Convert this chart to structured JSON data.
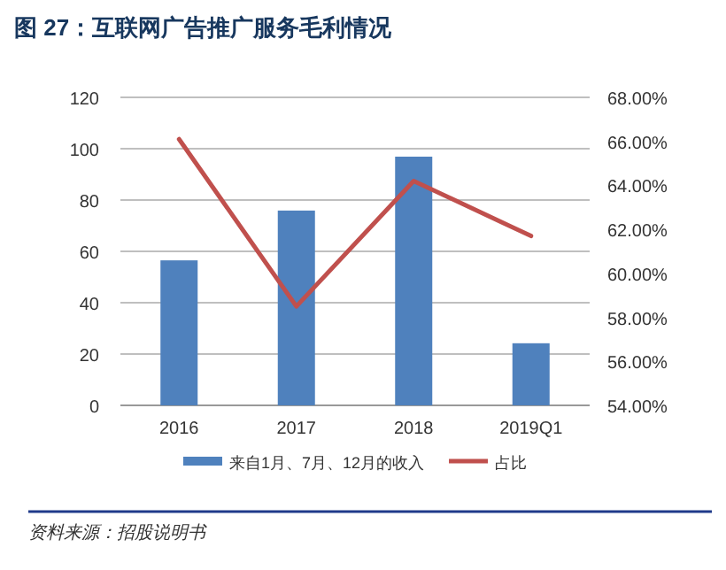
{
  "chart_data": {
    "type": "bar",
    "title": "图 27：互联网广告推广服务毛利情况",
    "categories": [
      "2016",
      "2017",
      "2018",
      "2019Q1"
    ],
    "series": [
      {
        "name": "来自1月、7月、12月的收入",
        "color": "#4f81bd",
        "values": [
          56.5,
          75.9,
          96.9,
          24.2
        ]
      },
      {
        "name": "占比",
        "type": "line",
        "axis": "y2",
        "color": "#c0504d",
        "values": [
          66.1,
          58.5,
          64.2,
          61.7
        ]
      }
    ],
    "ylim": [
      0,
      120
    ],
    "yticks": [
      0,
      20,
      40,
      60,
      80,
      100,
      120
    ],
    "y2lim": [
      54,
      68
    ],
    "y2ticks": [
      {
        "value": 54,
        "label": "54.00%"
      },
      {
        "value": 56,
        "label": "56.00%"
      },
      {
        "value": 58,
        "label": "58.00%"
      },
      {
        "value": 60,
        "label": "60.00%"
      },
      {
        "value": 62,
        "label": "62.00%"
      },
      {
        "value": 64,
        "label": "64.00%"
      },
      {
        "value": 66,
        "label": "66.00%"
      },
      {
        "value": 68,
        "label": "68.00%"
      }
    ],
    "grid": "y",
    "legend": "bottom",
    "annotations": [
      "资料来源：招股说明书"
    ]
  }
}
